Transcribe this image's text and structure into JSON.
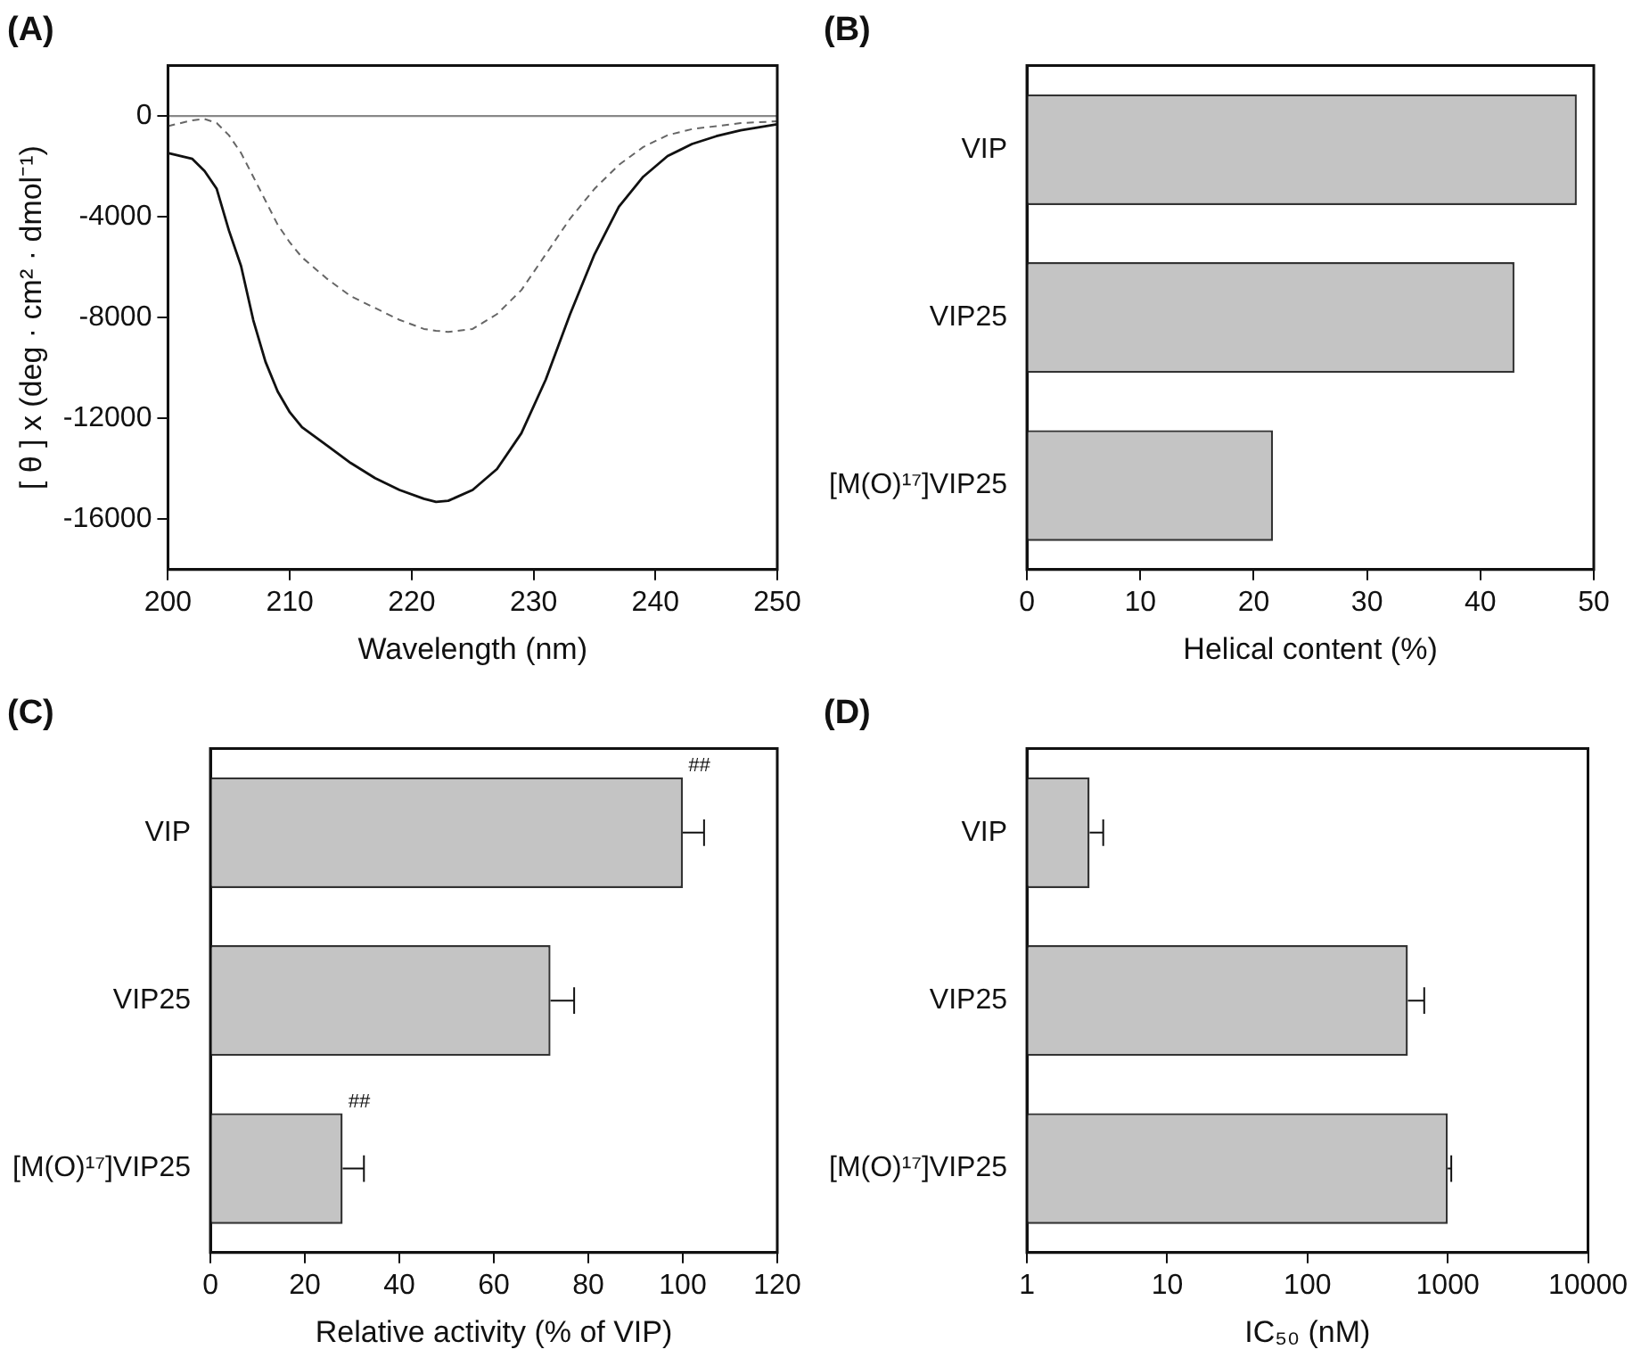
{
  "chart_data": [
    {
      "type": "line",
      "title": "(A)",
      "xlabel": "Wavelength (nm)",
      "ylabel": "[ θ ] x (deg · cm² · dmol⁻¹)",
      "x": [
        200,
        202,
        203,
        204,
        205,
        206,
        207,
        208,
        209,
        210,
        211,
        213,
        215,
        217,
        219,
        221,
        222,
        223,
        225,
        227,
        229,
        231,
        233,
        235,
        237,
        239,
        241,
        243,
        245,
        247,
        250
      ],
      "series": [
        {
          "color": "#111111",
          "line_style": "solid",
          "values": [
            -1470,
            -1700,
            -2180,
            -2890,
            -4540,
            -5960,
            -8100,
            -9750,
            -10930,
            -11760,
            -12350,
            -13060,
            -13770,
            -14370,
            -14840,
            -15190,
            -15310,
            -15270,
            -14840,
            -14010,
            -12590,
            -10460,
            -7860,
            -5490,
            -3600,
            -2410,
            -1590,
            -1110,
            -800,
            -570,
            -330
          ]
        },
        {
          "color": "#666666",
          "line_style": "dashed",
          "values": [
            -400,
            -170,
            -120,
            -280,
            -760,
            -1470,
            -2410,
            -3360,
            -4310,
            -5020,
            -5610,
            -6440,
            -7150,
            -7620,
            -8090,
            -8450,
            -8520,
            -8570,
            -8450,
            -7860,
            -6910,
            -5490,
            -4070,
            -2890,
            -1940,
            -1230,
            -760,
            -520,
            -400,
            -280,
            -210
          ]
        }
      ],
      "xlim": [
        200,
        250
      ],
      "xticks": [
        200,
        210,
        220,
        230,
        240,
        250
      ],
      "ylim": [
        -18000,
        2000
      ],
      "yticks": [
        0,
        -4000,
        -8000,
        -12000,
        -16000
      ],
      "ref_lines": [
        {
          "axis": "y",
          "value": 0,
          "color": "#888888"
        }
      ],
      "marker": "none",
      "grid": false,
      "legend": false
    },
    {
      "type": "bar",
      "orientation": "horizontal",
      "title": "(B)",
      "xlabel": "Helical content (%)",
      "categories": [
        "VIP",
        "VIP25",
        "[M(O)¹⁷]VIP25"
      ],
      "values": [
        48.5,
        43,
        21.7
      ],
      "color": "#c4c4c4",
      "xlim": [
        0,
        50
      ],
      "xticks": [
        0,
        10,
        20,
        30,
        40,
        50
      ],
      "grid": false,
      "legend": false
    },
    {
      "type": "bar",
      "orientation": "horizontal",
      "title": "(C)",
      "xlabel": "Relative activity (% of VIP)",
      "categories": [
        "VIP",
        "VIP25",
        "[M(O)¹⁷]VIP25"
      ],
      "values": [
        100,
        72,
        28
      ],
      "color": "#c4c4c4",
      "errors": [
        [
          100,
          104.5
        ],
        [
          72,
          77
        ],
        [
          28,
          32.5
        ]
      ],
      "annotations": [
        {
          "text": "##",
          "x": 100,
          "y": "VIP"
        },
        {
          "text": "##",
          "x": 28,
          "y": "[M(O)¹⁷]VIP25"
        }
      ],
      "xlim": [
        0,
        120
      ],
      "xticks": [
        0,
        20,
        40,
        60,
        80,
        100,
        120
      ],
      "grid": false,
      "legend": false
    },
    {
      "type": "bar",
      "orientation": "horizontal",
      "title": "(D)",
      "xlabel": "IC₅₀ (nM)",
      "categories": [
        "VIP",
        "VIP25",
        "[M(O)¹⁷]VIP25"
      ],
      "values": [
        2.8,
        520,
        1000
      ],
      "color": "#c4c4c4",
      "errors": [
        [
          2.8,
          3.5
        ],
        [
          520,
          680
        ],
        [
          1000,
          1060
        ]
      ],
      "log": "x",
      "xlim": [
        1,
        10000
      ],
      "xticks": [
        1,
        10,
        100,
        1000,
        10000
      ],
      "grid": false,
      "legend": false
    }
  ]
}
